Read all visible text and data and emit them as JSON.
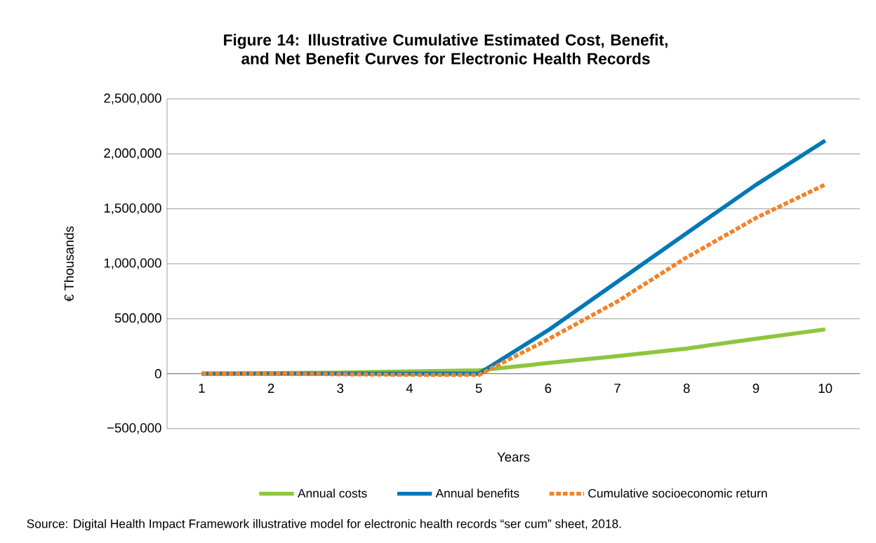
{
  "chart_data": {
    "type": "line",
    "title": "Figure 14: Illustrative Cumulative Estimated Cost, Benefit, and Net Benefit Curves for Electronic Health Records",
    "xlabel": "Years",
    "ylabel": "€ Thousands",
    "categories": [
      "1",
      "2",
      "3",
      "4",
      "5",
      "6",
      "7",
      "8",
      "9",
      "10"
    ],
    "series": [
      {
        "name": "Annual costs",
        "color": "#8dc63f",
        "line_style": "solid",
        "values": [
          0,
          5000,
          10000,
          20000,
          30000,
          97000,
          160000,
          229000,
          318000,
          403000
        ]
      },
      {
        "name": "Annual benefits",
        "color": "#0079b4",
        "line_style": "solid",
        "values": [
          0,
          0,
          0,
          0,
          0,
          395000,
          837000,
          1279000,
          1718000,
          2121000
        ]
      },
      {
        "name": "Cumulative socioeconomic return",
        "color": "#f0832a",
        "line_style": "dashed",
        "values": [
          0,
          0,
          -5000,
          -10000,
          -11000,
          312000,
          657000,
          1058000,
          1417000,
          1721000
        ]
      }
    ],
    "ylim": [
      -500000,
      2500000
    ],
    "yticks": [
      {
        "value": -500000,
        "label": "−500,000"
      },
      0,
      {
        "value": 500000,
        "label": "500,000"
      },
      {
        "value": 1000000,
        "label": "1,000,000"
      },
      {
        "value": 1500000,
        "label": "1,500,000"
      },
      {
        "value": 2000000,
        "label": "2,000,000"
      },
      {
        "value": 2500000,
        "label": "2,500,000"
      }
    ],
    "grid": "y",
    "legend": "bottom",
    "marker": "none",
    "annotations": [
      "Source: Digital Health Impact Framework illustrative model for electronic health records “ser cum” sheet, 2018."
    ]
  }
}
